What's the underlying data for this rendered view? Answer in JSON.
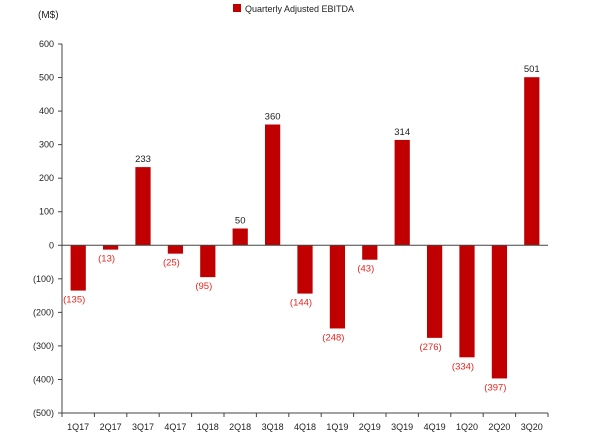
{
  "chart_data": {
    "type": "bar",
    "title": "",
    "ylabel": "(M$)",
    "xlabel": "",
    "legend": {
      "label": "Quarterly Adjusted EBITDA",
      "position": "top-center"
    },
    "ylim": [
      -500,
      600
    ],
    "yticks": [
      600,
      500,
      400,
      300,
      200,
      100,
      0,
      -100,
      -200,
      -300,
      -400,
      -500
    ],
    "ytick_labels": [
      "600",
      "500",
      "400",
      "300",
      "200",
      "100",
      "0",
      "(100)",
      "(200)",
      "(300)",
      "(400)",
      "(500)"
    ],
    "categories": [
      "1Q17",
      "2Q17",
      "3Q17",
      "4Q17",
      "1Q18",
      "2Q18",
      "3Q18",
      "4Q18",
      "1Q19",
      "2Q19",
      "3Q19",
      "4Q19",
      "1Q20",
      "2Q20",
      "3Q20"
    ],
    "values": [
      -135,
      -13,
      233,
      -25,
      -95,
      50,
      360,
      -144,
      -248,
      -43,
      314,
      -276,
      -334,
      -397,
      501
    ],
    "data_labels": [
      "(135)",
      "(13)",
      "233",
      "(25)",
      "(95)",
      "50",
      "360",
      "(144)",
      "(248)",
      "(43)",
      "314",
      "(276)",
      "(334)",
      "(397)",
      "501"
    ],
    "colors": {
      "bar": "#c00000",
      "negative_label": "#e8251f",
      "positive_label": "#222222",
      "axis": "#444444"
    }
  }
}
